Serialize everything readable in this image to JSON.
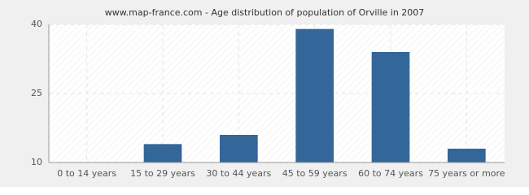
{
  "chart_data": {
    "type": "bar",
    "title": "www.map-france.com - Age distribution of population of Orville in 2007",
    "categories": [
      "0 to 14 years",
      "15 to 29 years",
      "30 to 44 years",
      "45 to 59 years",
      "60 to 74 years",
      "75 years or more"
    ],
    "values": [
      10,
      14,
      16,
      39,
      34,
      13
    ],
    "color": "#336699",
    "ylim": [
      10,
      40
    ],
    "yticks": [
      10,
      25,
      40
    ],
    "grid": true
  }
}
